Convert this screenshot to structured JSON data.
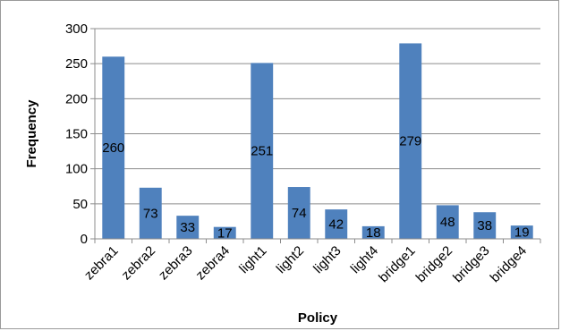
{
  "chart_data": {
    "type": "bar",
    "title": "",
    "xlabel": "Policy",
    "ylabel": "Frequency",
    "categories": [
      "zebra1",
      "zebra2",
      "zebra3",
      "zebra4",
      "light1",
      "light2",
      "light3",
      "light4",
      "bridge1",
      "bridge2",
      "bridge3",
      "bridge4"
    ],
    "values": [
      260,
      73,
      33,
      17,
      251,
      74,
      42,
      18,
      279,
      48,
      38,
      19
    ],
    "ylim": [
      0,
      300
    ],
    "yticks": [
      0,
      50,
      100,
      150,
      200,
      250,
      300
    ],
    "grid": true,
    "legend": "none",
    "colors": {
      "bar": "#4f81bd",
      "grid": "#8c8c8c",
      "axis": "#8c8c8c"
    }
  }
}
